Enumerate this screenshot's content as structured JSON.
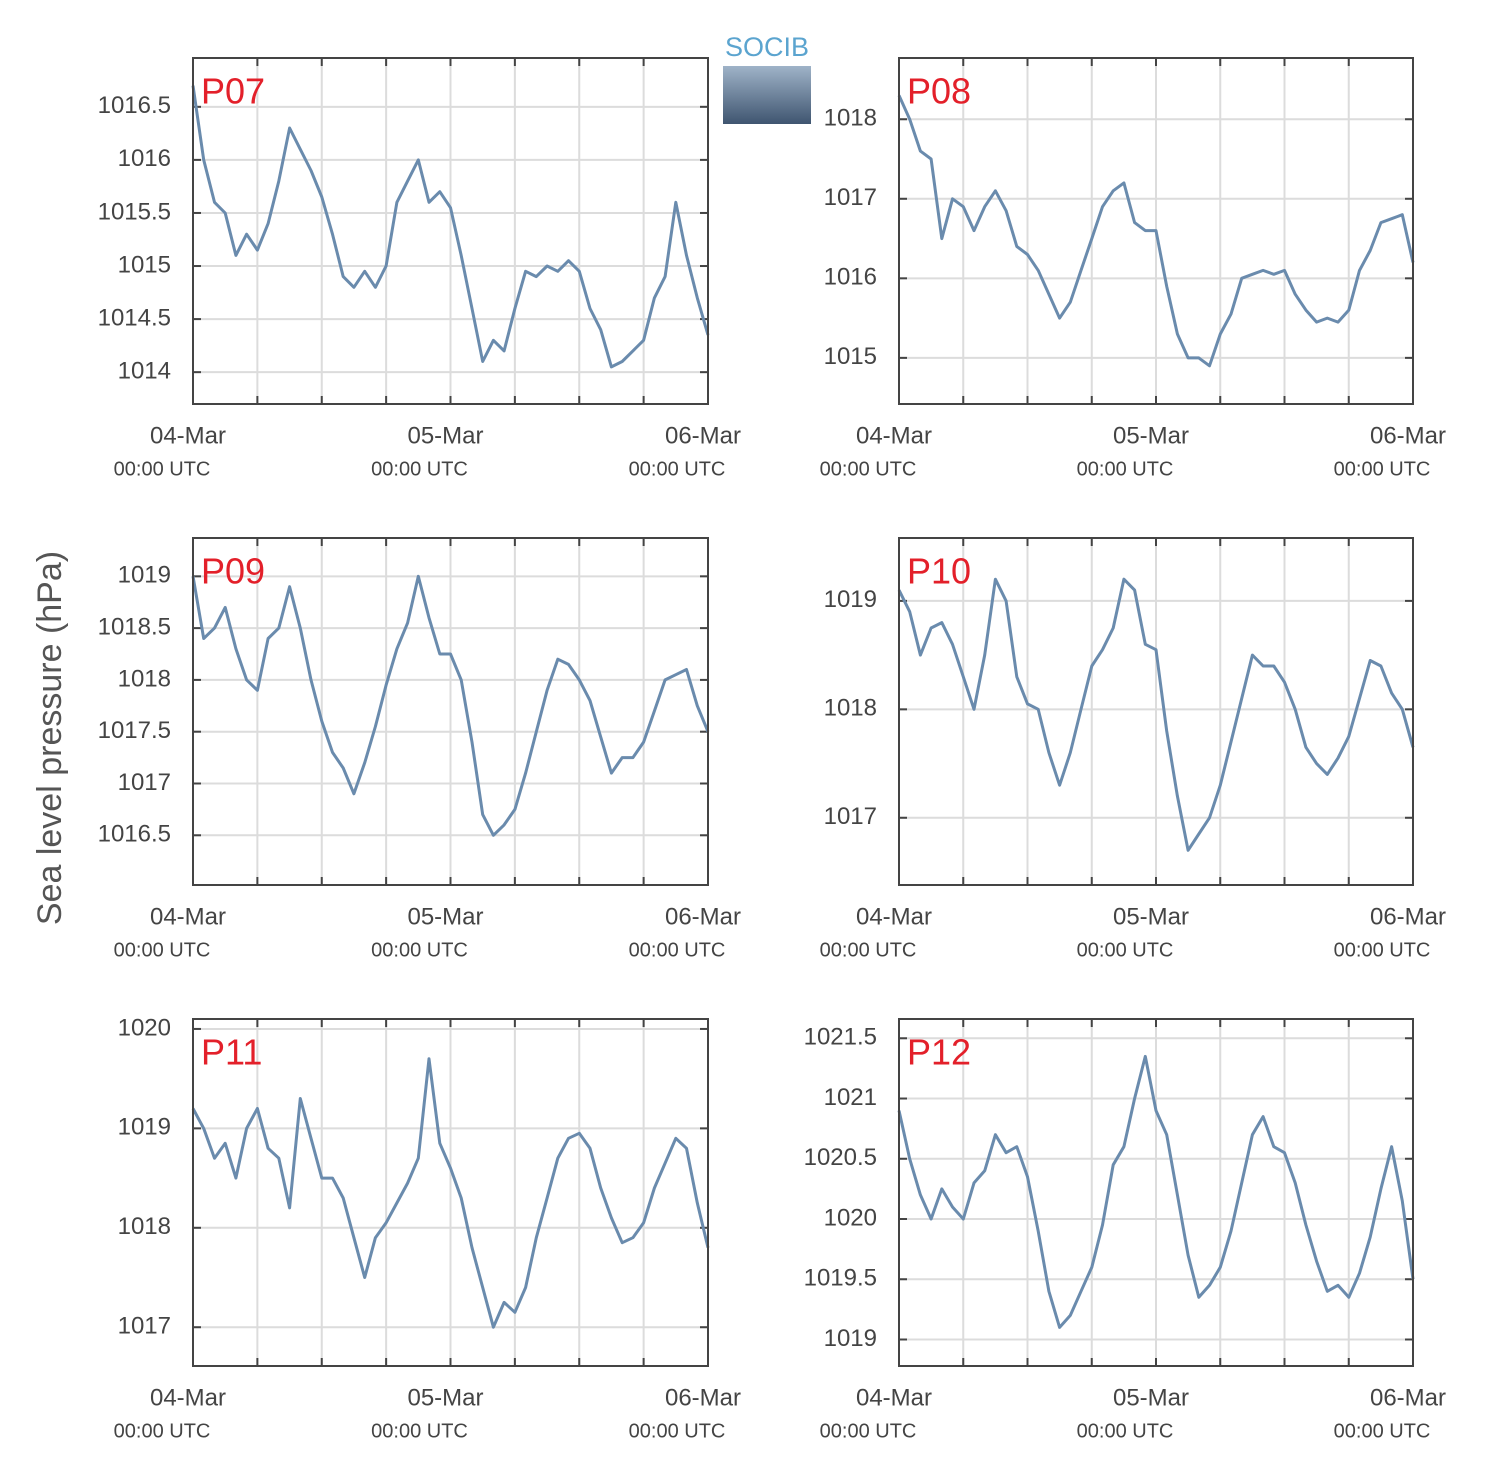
{
  "ylabel": "Sea level pressure (hPa)",
  "logo": "SOCIB",
  "chart_data": [
    {
      "type": "line",
      "label": "P07",
      "color": "#6a8bad",
      "grid": true,
      "x": [
        0,
        1,
        2,
        3,
        4,
        5,
        6,
        7,
        8,
        9,
        10,
        11,
        12,
        13,
        14,
        15,
        16,
        17,
        18,
        19,
        20,
        21,
        22,
        23,
        24,
        25,
        26,
        27,
        28,
        29,
        30,
        31,
        32,
        33,
        34,
        35,
        36,
        37,
        38,
        39,
        40,
        41,
        42,
        43,
        44,
        45,
        46,
        47,
        48
      ],
      "values": [
        1016.7,
        1016.0,
        1015.6,
        1015.5,
        1015.1,
        1015.3,
        1015.15,
        1015.4,
        1015.8,
        1016.3,
        1016.1,
        1015.9,
        1015.65,
        1015.3,
        1014.9,
        1014.8,
        1014.95,
        1014.8,
        1015.0,
        1015.6,
        1015.8,
        1016.0,
        1015.6,
        1015.7,
        1015.55,
        1015.1,
        1014.6,
        1014.1,
        1014.3,
        1014.2,
        1014.6,
        1014.95,
        1014.9,
        1015.0,
        1014.95,
        1015.05,
        1014.95,
        1014.6,
        1014.4,
        1014.05,
        1014.1,
        1014.2,
        1014.3,
        1014.7,
        1014.9,
        1015.6,
        1015.1,
        1014.7,
        1014.35
      ],
      "xlim": [
        0,
        48
      ],
      "xticks": [
        {
          "value": 0,
          "label": "04-Mar",
          "sublabel": "00:00 UTC"
        },
        {
          "value": 6
        },
        {
          "value": 12
        },
        {
          "value": 18
        },
        {
          "value": 24,
          "label": "05-Mar",
          "sublabel": "00:00 UTC"
        },
        {
          "value": 30
        },
        {
          "value": 36
        },
        {
          "value": 42
        },
        {
          "value": 48,
          "label": "06-Mar",
          "sublabel": "00:00 UTC"
        }
      ],
      "ylim": [
        1013.7,
        1016.96
      ],
      "yticks": [
        1014,
        1014.5,
        1015,
        1015.5,
        1016,
        1016.5
      ]
    },
    {
      "type": "line",
      "label": "P08",
      "color": "#6a8bad",
      "grid": true,
      "x": [
        0,
        1,
        2,
        3,
        4,
        5,
        6,
        7,
        8,
        9,
        10,
        11,
        12,
        13,
        14,
        15,
        16,
        17,
        18,
        19,
        20,
        21,
        22,
        23,
        24,
        25,
        26,
        27,
        28,
        29,
        30,
        31,
        32,
        33,
        34,
        35,
        36,
        37,
        38,
        39,
        40,
        41,
        42,
        43,
        44,
        45,
        46,
        47,
        48
      ],
      "values": [
        1018.3,
        1018.0,
        1017.6,
        1017.5,
        1016.5,
        1017.0,
        1016.9,
        1016.6,
        1016.9,
        1017.1,
        1016.85,
        1016.4,
        1016.3,
        1016.1,
        1015.8,
        1015.5,
        1015.7,
        1016.1,
        1016.5,
        1016.9,
        1017.1,
        1017.2,
        1016.7,
        1016.6,
        1016.6,
        1015.9,
        1015.3,
        1015.0,
        1015.0,
        1014.9,
        1015.3,
        1015.55,
        1016.0,
        1016.05,
        1016.1,
        1016.05,
        1016.1,
        1015.8,
        1015.6,
        1015.45,
        1015.5,
        1015.45,
        1015.6,
        1016.1,
        1016.35,
        1016.7,
        1016.75,
        1016.8,
        1016.2
      ],
      "xlim": [
        0,
        48
      ],
      "xticks": [
        {
          "value": 0,
          "label": "04-Mar",
          "sublabel": "00:00 UTC"
        },
        {
          "value": 6
        },
        {
          "value": 12
        },
        {
          "value": 18
        },
        {
          "value": 24,
          "label": "05-Mar",
          "sublabel": "00:00 UTC"
        },
        {
          "value": 30
        },
        {
          "value": 36
        },
        {
          "value": 42
        },
        {
          "value": 48,
          "label": "06-Mar",
          "sublabel": "00:00 UTC"
        }
      ],
      "ylim": [
        1014.42,
        1018.77
      ],
      "yticks": [
        1015,
        1016,
        1017,
        1018
      ]
    },
    {
      "type": "line",
      "label": "P09",
      "color": "#6a8bad",
      "grid": true,
      "x": [
        0,
        1,
        2,
        3,
        4,
        5,
        6,
        7,
        8,
        9,
        10,
        11,
        12,
        13,
        14,
        15,
        16,
        17,
        18,
        19,
        20,
        21,
        22,
        23,
        24,
        25,
        26,
        27,
        28,
        29,
        30,
        31,
        32,
        33,
        34,
        35,
        36,
        37,
        38,
        39,
        40,
        41,
        42,
        43,
        44,
        45,
        46,
        47,
        48
      ],
      "values": [
        1019.0,
        1018.4,
        1018.5,
        1018.7,
        1018.3,
        1018.0,
        1017.9,
        1018.4,
        1018.5,
        1018.9,
        1018.5,
        1018.0,
        1017.6,
        1017.3,
        1017.15,
        1016.9,
        1017.2,
        1017.55,
        1017.95,
        1018.3,
        1018.55,
        1019.0,
        1018.6,
        1018.25,
        1018.25,
        1018.0,
        1017.4,
        1016.7,
        1016.5,
        1016.6,
        1016.75,
        1017.1,
        1017.5,
        1017.9,
        1018.2,
        1018.15,
        1018.0,
        1017.8,
        1017.45,
        1017.1,
        1017.25,
        1017.25,
        1017.4,
        1017.7,
        1018.0,
        1018.05,
        1018.1,
        1017.75,
        1017.5
      ],
      "xlim": [
        0,
        48
      ],
      "xticks": [
        {
          "value": 0,
          "label": "04-Mar",
          "sublabel": "00:00 UTC"
        },
        {
          "value": 6
        },
        {
          "value": 12
        },
        {
          "value": 18
        },
        {
          "value": 24,
          "label": "05-Mar",
          "sublabel": "00:00 UTC"
        },
        {
          "value": 30
        },
        {
          "value": 36
        },
        {
          "value": 42
        },
        {
          "value": 48,
          "label": "06-Mar",
          "sublabel": "00:00 UTC"
        }
      ],
      "ylim": [
        1016.02,
        1019.37
      ],
      "yticks": [
        1016.5,
        1017,
        1017.5,
        1018,
        1018.5,
        1019
      ]
    },
    {
      "type": "line",
      "label": "P10",
      "color": "#6a8bad",
      "grid": true,
      "x": [
        0,
        1,
        2,
        3,
        4,
        5,
        6,
        7,
        8,
        9,
        10,
        11,
        12,
        13,
        14,
        15,
        16,
        17,
        18,
        19,
        20,
        21,
        22,
        23,
        24,
        25,
        26,
        27,
        28,
        29,
        30,
        31,
        32,
        33,
        34,
        35,
        36,
        37,
        38,
        39,
        40,
        41,
        42,
        43,
        44,
        45,
        46,
        47,
        48
      ],
      "values": [
        1019.1,
        1018.9,
        1018.5,
        1018.75,
        1018.8,
        1018.6,
        1018.3,
        1018.0,
        1018.5,
        1019.2,
        1019.0,
        1018.3,
        1018.05,
        1018.0,
        1017.6,
        1017.3,
        1017.6,
        1018.0,
        1018.4,
        1018.55,
        1018.75,
        1019.2,
        1019.1,
        1018.6,
        1018.55,
        1017.8,
        1017.2,
        1016.7,
        1016.85,
        1017.0,
        1017.3,
        1017.7,
        1018.1,
        1018.5,
        1018.4,
        1018.4,
        1018.25,
        1018.0,
        1017.65,
        1017.5,
        1017.4,
        1017.55,
        1017.75,
        1018.1,
        1018.45,
        1018.4,
        1018.15,
        1018.0,
        1017.65
      ],
      "xlim": [
        0,
        48
      ],
      "xticks": [
        {
          "value": 0,
          "label": "04-Mar",
          "sublabel": "00:00 UTC"
        },
        {
          "value": 6
        },
        {
          "value": 12
        },
        {
          "value": 18
        },
        {
          "value": 24,
          "label": "05-Mar",
          "sublabel": "00:00 UTC"
        },
        {
          "value": 30
        },
        {
          "value": 36
        },
        {
          "value": 42
        },
        {
          "value": 48,
          "label": "06-Mar",
          "sublabel": "00:00 UTC"
        }
      ],
      "ylim": [
        1016.38,
        1019.58
      ],
      "yticks": [
        1017,
        1018,
        1019
      ]
    },
    {
      "type": "line",
      "label": "P11",
      "color": "#6a8bad",
      "grid": true,
      "x": [
        0,
        1,
        2,
        3,
        4,
        5,
        6,
        7,
        8,
        9,
        10,
        11,
        12,
        13,
        14,
        15,
        16,
        17,
        18,
        19,
        20,
        21,
        22,
        23,
        24,
        25,
        26,
        27,
        28,
        29,
        30,
        31,
        32,
        33,
        34,
        35,
        36,
        37,
        38,
        39,
        40,
        41,
        42,
        43,
        44,
        45,
        46,
        47,
        48
      ],
      "values": [
        1019.2,
        1019.0,
        1018.7,
        1018.85,
        1018.5,
        1019.0,
        1019.2,
        1018.8,
        1018.7,
        1018.2,
        1019.3,
        1018.9,
        1018.5,
        1018.5,
        1018.3,
        1017.9,
        1017.5,
        1017.9,
        1018.05,
        1018.25,
        1018.45,
        1018.7,
        1019.7,
        1018.85,
        1018.6,
        1018.3,
        1017.8,
        1017.4,
        1017.0,
        1017.25,
        1017.15,
        1017.4,
        1017.9,
        1018.3,
        1018.7,
        1018.9,
        1018.95,
        1018.8,
        1018.4,
        1018.1,
        1017.85,
        1017.9,
        1018.05,
        1018.4,
        1018.65,
        1018.9,
        1018.8,
        1018.25,
        1017.8
      ],
      "xlim": [
        0,
        48
      ],
      "xticks": [
        {
          "value": 0,
          "label": "04-Mar",
          "sublabel": "00:00 UTC"
        },
        {
          "value": 6
        },
        {
          "value": 12
        },
        {
          "value": 18
        },
        {
          "value": 24,
          "label": "05-Mar",
          "sublabel": "00:00 UTC"
        },
        {
          "value": 30
        },
        {
          "value": 36
        },
        {
          "value": 42
        },
        {
          "value": 48,
          "label": "06-Mar",
          "sublabel": "00:00 UTC"
        }
      ],
      "ylim": [
        1016.61,
        1020.1
      ],
      "yticks": [
        1017,
        1018,
        1019,
        1020
      ]
    },
    {
      "type": "line",
      "label": "P12",
      "color": "#6a8bad",
      "grid": true,
      "x": [
        0,
        1,
        2,
        3,
        4,
        5,
        6,
        7,
        8,
        9,
        10,
        11,
        12,
        13,
        14,
        15,
        16,
        17,
        18,
        19,
        20,
        21,
        22,
        23,
        24,
        25,
        26,
        27,
        28,
        29,
        30,
        31,
        32,
        33,
        34,
        35,
        36,
        37,
        38,
        39,
        40,
        41,
        42,
        43,
        44,
        45,
        46,
        47,
        48
      ],
      "values": [
        1020.9,
        1020.5,
        1020.2,
        1020.0,
        1020.25,
        1020.1,
        1020.0,
        1020.3,
        1020.4,
        1020.7,
        1020.55,
        1020.6,
        1020.35,
        1019.9,
        1019.4,
        1019.1,
        1019.2,
        1019.4,
        1019.6,
        1019.95,
        1020.45,
        1020.6,
        1021.0,
        1021.35,
        1020.9,
        1020.7,
        1020.2,
        1019.7,
        1019.35,
        1019.45,
        1019.6,
        1019.9,
        1020.3,
        1020.7,
        1020.85,
        1020.6,
        1020.55,
        1020.3,
        1019.95,
        1019.65,
        1019.4,
        1019.45,
        1019.35,
        1019.55,
        1019.85,
        1020.25,
        1020.6,
        1020.15,
        1019.5
      ],
      "xlim": [
        0,
        48
      ],
      "xticks": [
        {
          "value": 0,
          "label": "04-Mar",
          "sublabel": "00:00 UTC"
        },
        {
          "value": 6
        },
        {
          "value": 12
        },
        {
          "value": 18
        },
        {
          "value": 24,
          "label": "05-Mar",
          "sublabel": "00:00 UTC"
        },
        {
          "value": 30
        },
        {
          "value": 36
        },
        {
          "value": 42
        },
        {
          "value": 48,
          "label": "06-Mar",
          "sublabel": "00:00 UTC"
        }
      ],
      "ylim": [
        1018.78,
        1021.66
      ],
      "yticks": [
        1019,
        1019.5,
        1020,
        1020.5,
        1021,
        1021.5
      ]
    }
  ]
}
